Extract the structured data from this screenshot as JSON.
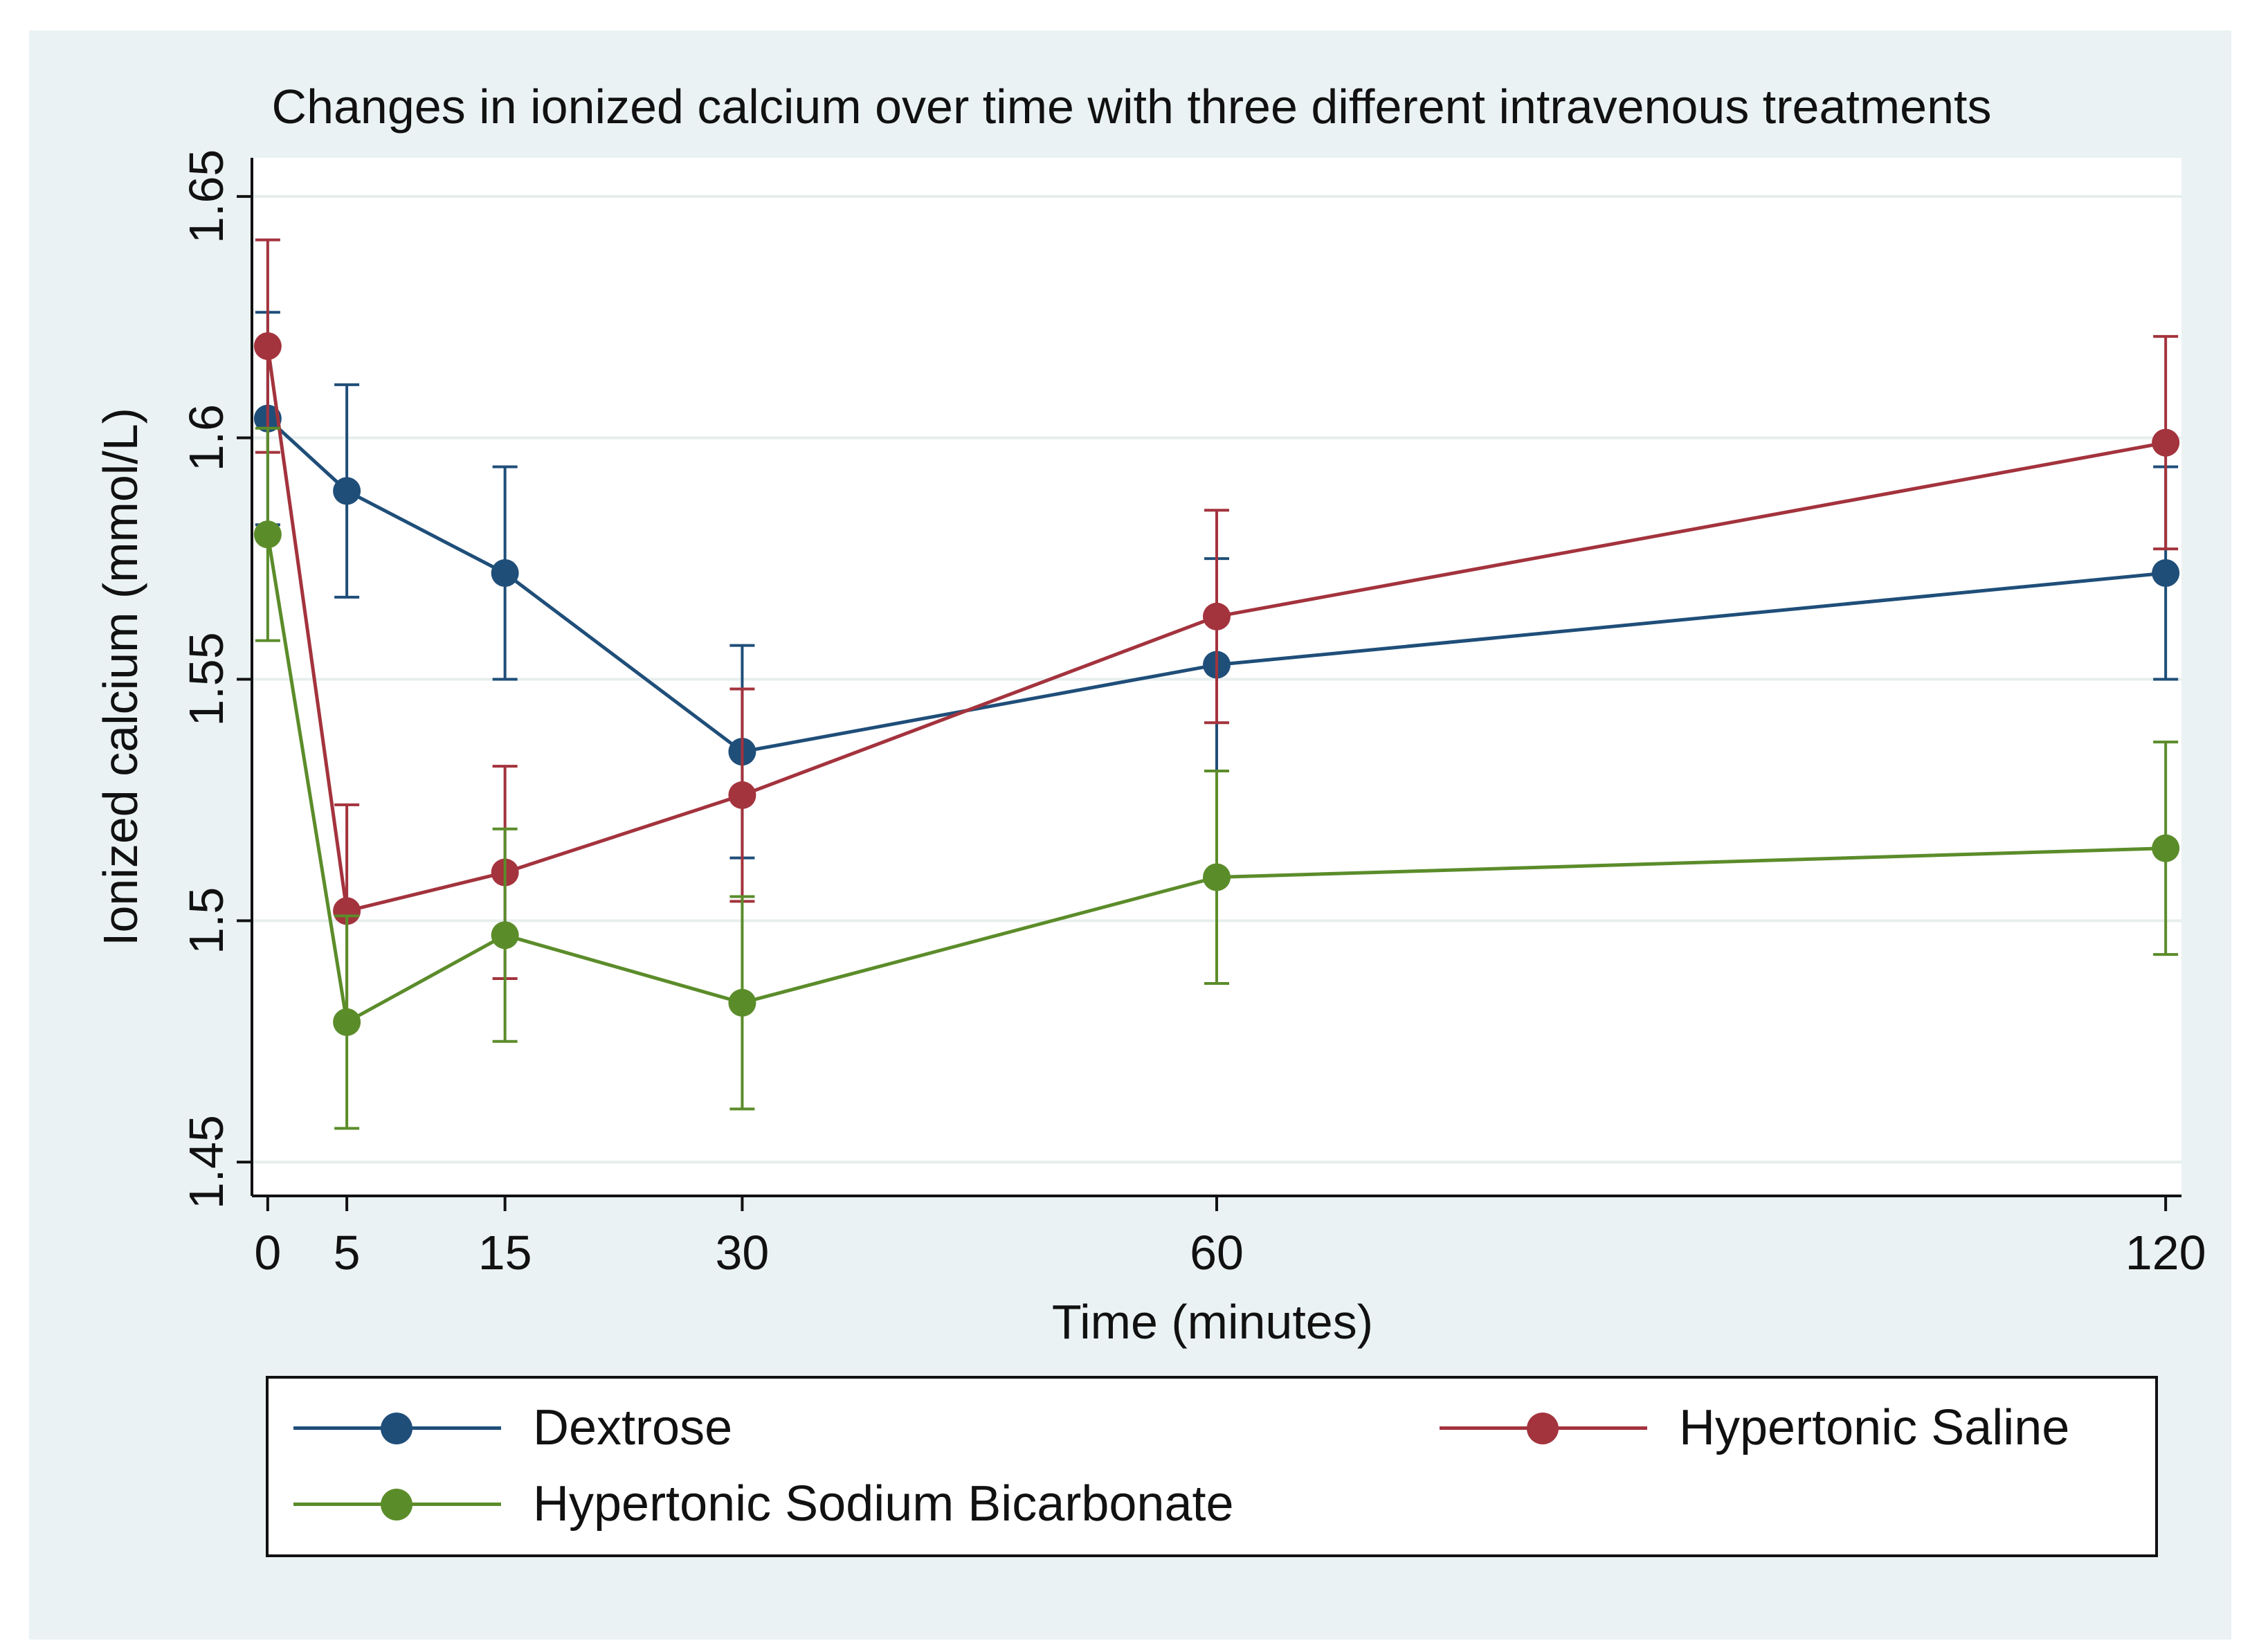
{
  "chart_data": {
    "type": "line",
    "title": "Changes in ionized calcium over time with three different intravenous treatments",
    "xlabel": "Time (minutes)",
    "ylabel": "Ionized calcium (mmol/L)",
    "x": [
      0,
      5,
      15,
      30,
      60,
      120
    ],
    "x_ticks": [
      "0",
      "5",
      "15",
      "30",
      "60",
      "120"
    ],
    "y_ticks": [
      "1.45",
      "1.5",
      "1.55",
      "1.6",
      "1.65"
    ],
    "y_tick_values": [
      1.45,
      1.5,
      1.55,
      1.6,
      1.65
    ],
    "xlim": [
      -1,
      121
    ],
    "ylim": [
      1.443,
      1.658
    ],
    "grid": true,
    "legend_position": "bottom",
    "series": [
      {
        "name": "Dextrose",
        "color": "#1f4e79",
        "values": [
          1.604,
          1.589,
          1.572,
          1.535,
          1.553,
          1.572
        ],
        "upper": [
          1.626,
          1.611,
          1.594,
          1.557,
          1.575,
          1.594
        ],
        "lower": [
          1.582,
          1.567,
          1.55,
          1.513,
          1.531,
          1.55
        ]
      },
      {
        "name": "Hypertonic Saline",
        "color": "#a3333d",
        "values": [
          1.619,
          1.502,
          1.51,
          1.526,
          1.563,
          1.599
        ],
        "upper": [
          1.641,
          1.524,
          1.532,
          1.548,
          1.585,
          1.621
        ],
        "lower": [
          1.597,
          1.48,
          1.488,
          1.504,
          1.541,
          1.577
        ]
      },
      {
        "name": "Hypertonic Sodium Bicarbonate",
        "color": "#5b8c2a",
        "values": [
          1.58,
          1.479,
          1.497,
          1.483,
          1.509,
          1.515
        ],
        "upper": [
          1.602,
          1.501,
          1.519,
          1.505,
          1.531,
          1.537
        ],
        "lower": [
          1.558,
          1.457,
          1.475,
          1.461,
          1.487,
          1.493
        ]
      }
    ]
  },
  "legend": {
    "items": [
      {
        "label": "Dextrose",
        "color": "#1f4e79"
      },
      {
        "label": "Hypertonic Saline",
        "color": "#a3333d"
      },
      {
        "label": "Hypertonic Sodium Bicarbonate",
        "color": "#5b8c2a"
      }
    ]
  }
}
